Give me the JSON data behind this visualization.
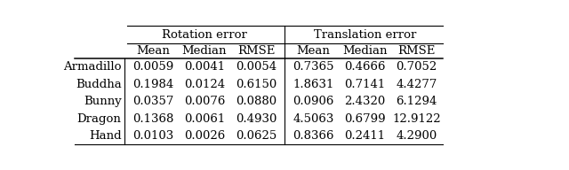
{
  "rows": [
    "Armadillo",
    "Buddha",
    "Bunny",
    "Dragon",
    "Hand"
  ],
  "rot_mean": [
    "0.0059",
    "0.1984",
    "0.0357",
    "0.1368",
    "0.0103"
  ],
  "rot_median": [
    "0.0041",
    "0.0124",
    "0.0076",
    "0.0061",
    "0.0026"
  ],
  "rot_rmse": [
    "0.0054",
    "0.6150",
    "0.0880",
    "0.4930",
    "0.0625"
  ],
  "trans_mean": [
    "0.7365",
    "1.8631",
    "0.0906",
    "4.5063",
    "0.8366"
  ],
  "trans_median": [
    "0.4666",
    "0.7141",
    "2.4320",
    "0.6799",
    "0.2411"
  ],
  "trans_rmse": [
    "0.7052",
    "4.4277",
    "6.1294",
    "12.9122",
    "4.2900"
  ],
  "header1_rot": "Rotation error",
  "header1_trans": "Translation error",
  "header2": [
    "Mean",
    "Median",
    "RMSE",
    "Mean",
    "Median",
    "RMSE"
  ],
  "bg_color": "#ffffff",
  "font_size": 9.5,
  "header_font_size": 9.5
}
